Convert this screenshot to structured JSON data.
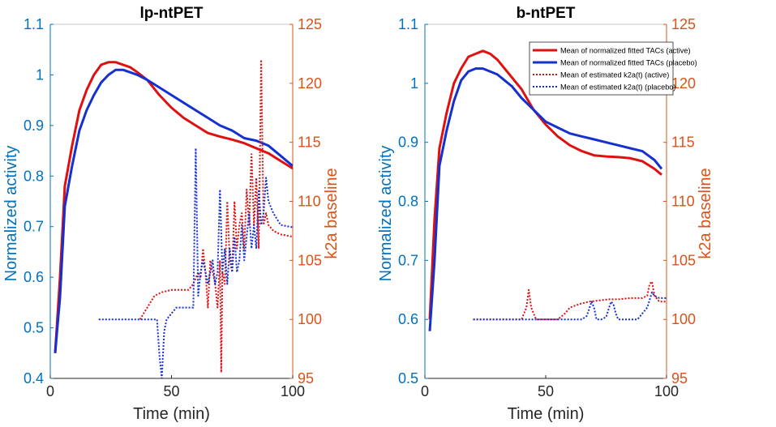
{
  "colors": {
    "left_axis": "#0072BD",
    "right_axis": "#D95319",
    "active": "#E01010",
    "placebo": "#1530D0",
    "axis_frame": "#262626"
  },
  "legend": {
    "placement": "top-right of second panel",
    "entries": [
      "Mean of normalized fitted TACs (active)",
      "Mean of normalized fitted TACs  (placebo)",
      "Mean of estimated k2a(t) (active)",
      "Mean of estimated k2a(t) (placebo)"
    ]
  },
  "chart_data": [
    {
      "type": "line",
      "title": "lp-ntPET",
      "xlabel": "Time (min)",
      "ylabel_left": "Normalized activity",
      "ylabel_right": "k2a baseline",
      "xlim": [
        0,
        100
      ],
      "ylim_left": [
        0.4,
        1.1
      ],
      "ylim_right": [
        95,
        125
      ],
      "x_ticks": [
        "0",
        "50",
        "100"
      ],
      "y_ticks_left": [
        "0.4",
        "0.5",
        "0.6",
        "0.7",
        "0.8",
        "0.9",
        "1",
        "1.1"
      ],
      "y_ticks_right": [
        "95",
        "100",
        "105",
        "110",
        "115",
        "120",
        "125"
      ],
      "series": [
        {
          "name": "Mean of normalized fitted TACs (active)",
          "axis": "left",
          "style": "solid",
          "color": "#E01010",
          "x": [
            2,
            4,
            6,
            9,
            12,
            15,
            18,
            21,
            24,
            27,
            30,
            33,
            36,
            40,
            45,
            50,
            55,
            60,
            65,
            70,
            75,
            80,
            85,
            90,
            95,
            100
          ],
          "y": [
            0.45,
            0.6,
            0.78,
            0.86,
            0.93,
            0.97,
            1.0,
            1.02,
            1.025,
            1.025,
            1.02,
            1.015,
            1.005,
            0.99,
            0.96,
            0.935,
            0.915,
            0.9,
            0.885,
            0.878,
            0.872,
            0.865,
            0.855,
            0.845,
            0.83,
            0.815
          ]
        },
        {
          "name": "Mean of normalized fitted TACs  (placebo)",
          "axis": "left",
          "style": "solid",
          "color": "#1530D0",
          "x": [
            2,
            4,
            6,
            9,
            12,
            15,
            18,
            21,
            24,
            27,
            30,
            33,
            36,
            40,
            45,
            50,
            55,
            60,
            65,
            70,
            75,
            80,
            85,
            90,
            95,
            100
          ],
          "y": [
            0.45,
            0.56,
            0.74,
            0.82,
            0.89,
            0.93,
            0.96,
            0.985,
            1.0,
            1.01,
            1.01,
            1.005,
            1.0,
            0.99,
            0.975,
            0.96,
            0.945,
            0.93,
            0.915,
            0.9,
            0.89,
            0.875,
            0.87,
            0.86,
            0.84,
            0.82
          ]
        },
        {
          "name": "Mean of estimated k2a(t) (active)",
          "axis": "right",
          "style": "dotted",
          "color": "#E01010",
          "x": [
            37,
            40,
            43,
            46,
            50,
            54,
            57,
            59,
            61,
            62,
            63,
            64,
            65,
            66,
            67,
            68,
            69,
            70,
            70.5,
            71,
            72,
            73,
            74,
            75,
            76,
            77,
            78,
            79,
            80,
            81,
            82,
            83,
            84,
            85,
            86,
            87,
            88,
            89,
            90,
            92,
            95,
            100
          ],
          "y": [
            100,
            101,
            102,
            102.3,
            102.5,
            102.5,
            102.5,
            103,
            104,
            103.5,
            106,
            104,
            101,
            105,
            104,
            103,
            101,
            105,
            95.5,
            104,
            103,
            110,
            105,
            104,
            110,
            106,
            108,
            109,
            106,
            111,
            108,
            114,
            108,
            112,
            106,
            122,
            108,
            109,
            108,
            107.5,
            107.2,
            107
          ]
        },
        {
          "name": "Mean of estimated k2a(t) (placebo)",
          "axis": "right",
          "style": "dotted",
          "color": "#1530D0",
          "x": [
            20,
            25,
            30,
            35,
            40,
            44,
            45,
            46,
            47,
            48,
            50,
            52,
            54,
            56,
            58,
            59,
            60,
            61,
            62,
            63,
            64,
            65,
            66,
            67,
            68,
            69,
            70,
            71,
            72,
            73,
            74,
            75,
            76,
            77,
            78,
            79,
            80,
            81,
            82,
            83,
            84,
            85,
            86,
            87,
            88,
            89,
            90,
            92,
            95,
            100
          ],
          "y": [
            100,
            100,
            100,
            100,
            100,
            100,
            97,
            95,
            99,
            100,
            100.5,
            101,
            101,
            101,
            101,
            101,
            114.5,
            102,
            104,
            105,
            104,
            103,
            104,
            105,
            103,
            104,
            111,
            104,
            106,
            103,
            106,
            104,
            107,
            104,
            105,
            108,
            105,
            107,
            109,
            106,
            108,
            106,
            111,
            108,
            109,
            112,
            110,
            109,
            108,
            107.8
          ]
        }
      ]
    },
    {
      "type": "line",
      "title": "b-ntPET",
      "xlabel": "Time (min)",
      "ylabel_left": "Normalized activity",
      "ylabel_right": "k2a baseline",
      "xlim": [
        0,
        100
      ],
      "ylim_left": [
        0.5,
        1.1
      ],
      "ylim_right": [
        95,
        125
      ],
      "x_ticks": [
        "0",
        "50",
        "100"
      ],
      "y_ticks_left": [
        "0.5",
        "0.6",
        "0.7",
        "0.8",
        "0.9",
        "1",
        "1.1"
      ],
      "y_ticks_right": [
        "95",
        "100",
        "105",
        "110",
        "115",
        "120",
        "125"
      ],
      "series": [
        {
          "name": "Mean of normalized fitted TACs (active)",
          "axis": "left",
          "style": "solid",
          "color": "#E01010",
          "x": [
            2,
            4,
            6,
            9,
            12,
            15,
            18,
            21,
            24,
            27,
            30,
            33,
            36,
            40,
            45,
            50,
            55,
            60,
            65,
            70,
            75,
            80,
            85,
            90,
            95,
            98
          ],
          "y": [
            0.6,
            0.77,
            0.89,
            0.95,
            1.0,
            1.025,
            1.045,
            1.05,
            1.055,
            1.05,
            1.04,
            1.025,
            1.01,
            0.99,
            0.955,
            0.93,
            0.91,
            0.895,
            0.885,
            0.878,
            0.876,
            0.875,
            0.873,
            0.868,
            0.855,
            0.845
          ]
        },
        {
          "name": "Mean of normalized fitted TACs  (placebo)",
          "axis": "left",
          "style": "solid",
          "color": "#1530D0",
          "x": [
            2,
            4,
            6,
            9,
            12,
            15,
            18,
            21,
            24,
            27,
            30,
            33,
            36,
            40,
            45,
            50,
            55,
            60,
            65,
            70,
            75,
            80,
            85,
            90,
            95,
            98
          ],
          "y": [
            0.58,
            0.7,
            0.86,
            0.92,
            0.97,
            1.005,
            1.02,
            1.025,
            1.025,
            1.02,
            1.015,
            1.005,
            0.995,
            0.975,
            0.955,
            0.935,
            0.925,
            0.915,
            0.91,
            0.905,
            0.9,
            0.895,
            0.89,
            0.885,
            0.87,
            0.855
          ]
        },
        {
          "name": "Mean of estimated k2a(t) (active)",
          "axis": "right",
          "style": "dotted",
          "color": "#E01010",
          "x": [
            20,
            25,
            30,
            35,
            40,
            42,
            43,
            44,
            46,
            50,
            55,
            58,
            60,
            64,
            68,
            72,
            76,
            80,
            85,
            90,
            92,
            93,
            94,
            95,
            97,
            100
          ],
          "y": [
            100,
            100,
            100,
            100,
            100,
            101,
            102.5,
            101,
            100,
            100,
            100,
            100.5,
            101,
            101.3,
            101.5,
            101.6,
            101.7,
            101.7,
            101.8,
            101.8,
            102,
            103,
            103.2,
            102,
            101.5,
            101.5
          ]
        },
        {
          "name": "Mean of estimated k2a(t) (placebo)",
          "axis": "right",
          "style": "dotted",
          "color": "#1530D0",
          "x": [
            20,
            25,
            30,
            35,
            40,
            45,
            50,
            55,
            60,
            65,
            67,
            69,
            70,
            71,
            73,
            75,
            77,
            78,
            79,
            80,
            82,
            85,
            88,
            90,
            92,
            94,
            95,
            97,
            100
          ],
          "y": [
            100,
            100,
            100,
            100,
            100,
            100,
            100,
            100,
            100,
            100,
            100.3,
            101.5,
            101,
            100,
            100,
            100.2,
            101.5,
            101.3,
            100.5,
            100,
            100,
            100,
            100,
            100.5,
            101,
            102.3,
            102,
            101.8,
            101.8
          ]
        }
      ]
    }
  ]
}
